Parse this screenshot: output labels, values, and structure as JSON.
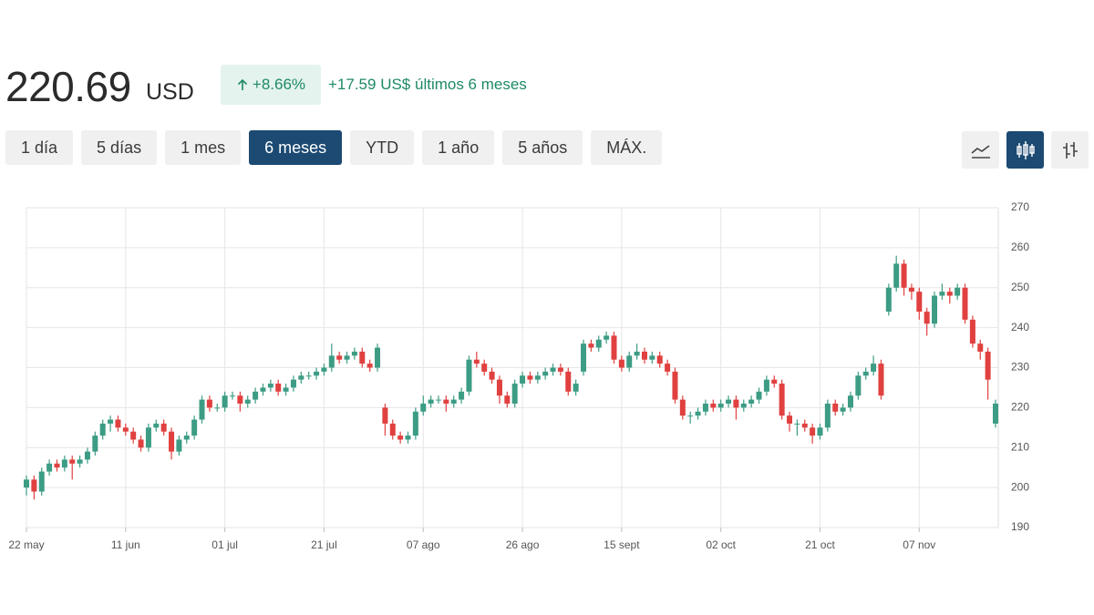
{
  "header": {
    "price": "220.69",
    "currency": "USD",
    "change_pct": "+8.66%",
    "change_text": "+17.59 US$ últimos 6 meses"
  },
  "ranges": [
    "1 día",
    "5 días",
    "1 mes",
    "6 meses",
    "YTD",
    "1 año",
    "5 años",
    "MÁX."
  ],
  "active_range": 3,
  "chart_data": {
    "type": "candlestick",
    "categories": [
      "22 may",
      null,
      null,
      null,
      null,
      null,
      null,
      null,
      null,
      null,
      null,
      null,
      null,
      "11 jun",
      null,
      null,
      null,
      null,
      null,
      null,
      null,
      null,
      null,
      null,
      null,
      null,
      "01 jul",
      null,
      null,
      null,
      null,
      null,
      null,
      null,
      null,
      null,
      null,
      null,
      null,
      "21 jul",
      null,
      null,
      null,
      null,
      null,
      null,
      null,
      null,
      null,
      null,
      null,
      null,
      "07 ago",
      null,
      null,
      null,
      null,
      null,
      null,
      null,
      null,
      null,
      null,
      null,
      null,
      "26 ago",
      null,
      null,
      null,
      null,
      null,
      null,
      null,
      null,
      null,
      null,
      null,
      null,
      "15 sept",
      null,
      null,
      null,
      null,
      null,
      null,
      null,
      null,
      null,
      null,
      null,
      null,
      "02 oct",
      null,
      null,
      null,
      null,
      null,
      null,
      null,
      null,
      null,
      null,
      null,
      null,
      "21 oct",
      null,
      null,
      null,
      null,
      null,
      null,
      null,
      null,
      null,
      null,
      null,
      null,
      "07 nov",
      null,
      null,
      null,
      null,
      null,
      null,
      null,
      null,
      null,
      null
    ],
    "open": [
      200,
      202,
      199,
      204,
      206,
      205,
      207,
      206,
      207,
      209,
      213,
      216,
      217,
      215,
      214,
      212,
      210,
      215,
      216,
      214,
      209,
      212,
      213,
      217,
      222,
      220,
      220,
      223,
      223,
      221,
      222,
      224,
      225,
      226,
      224,
      225,
      227,
      228,
      228,
      229,
      230,
      233,
      232,
      233,
      234,
      231,
      230,
      220,
      216,
      213,
      212,
      213,
      219,
      221,
      222,
      222,
      221,
      222,
      224,
      232,
      231,
      229,
      227,
      223,
      221,
      226,
      228,
      227,
      228,
      229,
      230,
      229,
      224,
      229,
      236,
      235,
      237,
      238,
      232,
      230,
      233,
      234,
      232,
      233,
      231,
      229,
      222,
      218,
      218,
      219,
      221,
      220,
      221,
      222,
      220,
      221,
      222,
      224,
      227,
      226,
      218,
      216,
      216,
      215,
      213,
      215,
      221,
      219,
      220,
      223,
      228,
      229,
      231,
      244,
      250,
      256,
      250,
      249,
      244,
      241,
      248,
      249,
      248,
      250,
      242,
      236,
      234,
      216
    ],
    "high": [
      203,
      203,
      205,
      207,
      207,
      208,
      208,
      208,
      210,
      214,
      217,
      218,
      218,
      216,
      215,
      213,
      216,
      217,
      217,
      215,
      213,
      214,
      218,
      223,
      223,
      221,
      224,
      224,
      224,
      223,
      225,
      226,
      227,
      227,
      226,
      228,
      229,
      229,
      230,
      231,
      236,
      234,
      234,
      235,
      235,
      232,
      236,
      221,
      217,
      214,
      214,
      220,
      223,
      223,
      223,
      223,
      223,
      225,
      233,
      234,
      232,
      230,
      228,
      224,
      227,
      229,
      229,
      229,
      230,
      231,
      231,
      230,
      227,
      237,
      237,
      238,
      239,
      239,
      233,
      234,
      236,
      235,
      234,
      234,
      232,
      230,
      223,
      219,
      220,
      222,
      222,
      222,
      223,
      223,
      222,
      223,
      225,
      228,
      228,
      227,
      219,
      217,
      217,
      216,
      216,
      222,
      222,
      221,
      224,
      229,
      230,
      233,
      232,
      251,
      258,
      257,
      251,
      250,
      245,
      249,
      251,
      250,
      251,
      251,
      243,
      237,
      235,
      222
    ],
    "low": [
      198,
      197,
      198,
      203,
      204,
      204,
      202,
      205,
      206,
      208,
      212,
      214,
      214,
      213,
      211,
      209,
      209,
      214,
      213,
      207,
      208,
      211,
      212,
      216,
      219,
      219,
      219,
      222,
      219,
      220,
      221,
      223,
      224,
      223,
      223,
      224,
      226,
      227,
      227,
      228,
      229,
      231,
      231,
      232,
      230,
      229,
      229,
      213,
      212,
      211,
      211,
      212,
      218,
      220,
      221,
      219,
      220,
      221,
      223,
      230,
      228,
      226,
      221,
      220,
      220,
      225,
      226,
      226,
      227,
      228,
      228,
      223,
      223,
      228,
      234,
      234,
      236,
      231,
      229,
      229,
      232,
      231,
      231,
      230,
      228,
      221,
      217,
      216,
      217,
      218,
      219,
      219,
      220,
      217,
      219,
      220,
      221,
      223,
      225,
      217,
      214,
      213,
      214,
      211,
      212,
      214,
      218,
      218,
      219,
      222,
      227,
      228,
      222,
      243,
      249,
      248,
      247,
      242,
      238,
      240,
      247,
      246,
      247,
      241,
      235,
      232,
      222,
      215
    ],
    "close": [
      202,
      199,
      204,
      206,
      205,
      207,
      206,
      207,
      209,
      213,
      216,
      217,
      215,
      214,
      212,
      210,
      215,
      216,
      214,
      209,
      212,
      213,
      217,
      222,
      220,
      220,
      223,
      223,
      221,
      222,
      224,
      225,
      226,
      224,
      225,
      227,
      228,
      228,
      229,
      230,
      233,
      232,
      233,
      234,
      231,
      230,
      235,
      216,
      213,
      212,
      213,
      219,
      221,
      222,
      222,
      221,
      222,
      224,
      232,
      231,
      229,
      227,
      223,
      221,
      226,
      228,
      227,
      228,
      229,
      230,
      229,
      224,
      226,
      236,
      235,
      237,
      238,
      232,
      230,
      233,
      234,
      232,
      233,
      231,
      229,
      222,
      218,
      218,
      219,
      221,
      220,
      221,
      222,
      220,
      221,
      222,
      224,
      227,
      226,
      218,
      216,
      216,
      215,
      213,
      215,
      221,
      219,
      220,
      223,
      228,
      229,
      231,
      223,
      250,
      256,
      250,
      249,
      244,
      241,
      248,
      249,
      248,
      250,
      242,
      236,
      234,
      227,
      221
    ],
    "up_color": "#3c9c84",
    "down_color": "#e0403f",
    "ylim": [
      190,
      270
    ],
    "yticks": [
      190,
      200,
      210,
      220,
      230,
      240,
      250,
      260,
      270
    ],
    "grid": true
  }
}
